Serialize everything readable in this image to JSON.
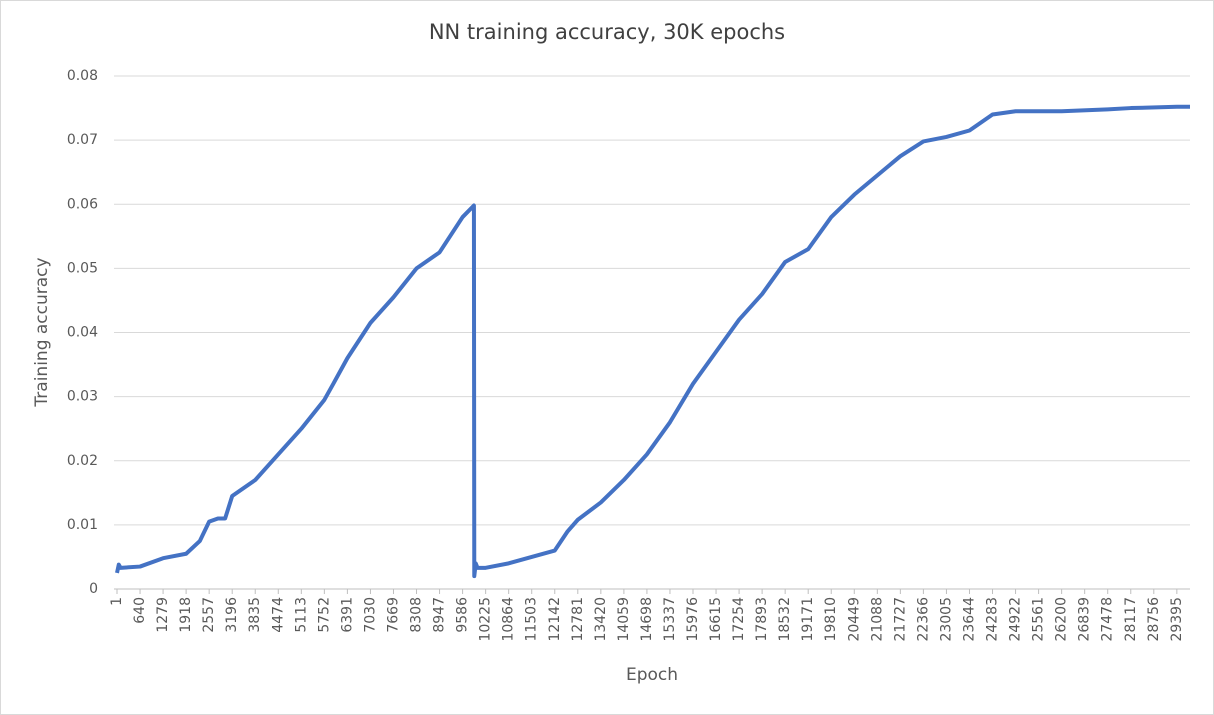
{
  "chart_data": {
    "type": "line",
    "title": "NN training accuracy, 30K epochs",
    "x_label": "Epoch",
    "y_label": "Training accuracy",
    "x": [
      1,
      50,
      100,
      640,
      1279,
      1918,
      2300,
      2557,
      2800,
      3000,
      3196,
      3835,
      4474,
      5113,
      5752,
      6000,
      6391,
      7030,
      7669,
      8308,
      8947,
      9586,
      9900,
      9910,
      9950,
      10000,
      10225,
      10864,
      11503,
      12142,
      12500,
      12781,
      13420,
      14059,
      14698,
      15337,
      15976,
      16615,
      17254,
      17893,
      18532,
      19171,
      19810,
      20449,
      21088,
      21727,
      22366,
      23005,
      23644,
      24283,
      24922,
      26200,
      27478,
      28117,
      29395,
      29760
    ],
    "series": [
      {
        "name": "Training accuracy",
        "color": "#4472c4",
        "values": [
          0.0025,
          0.0038,
          0.0033,
          0.0035,
          0.0048,
          0.0055,
          0.0075,
          0.0105,
          0.011,
          0.011,
          0.0145,
          0.017,
          0.021,
          0.025,
          0.0295,
          0.032,
          0.036,
          0.0415,
          0.0455,
          0.05,
          0.0525,
          0.058,
          0.0598,
          0.002,
          0.004,
          0.0033,
          0.0033,
          0.004,
          0.005,
          0.006,
          0.009,
          0.0108,
          0.0135,
          0.017,
          0.021,
          0.026,
          0.032,
          0.037,
          0.042,
          0.046,
          0.051,
          0.053,
          0.058,
          0.0615,
          0.0645,
          0.0675,
          0.0698,
          0.0705,
          0.0715,
          0.074,
          0.0745,
          0.0745,
          0.0748,
          0.075,
          0.0752,
          0.0752
        ]
      }
    ],
    "xlim": [
      1,
      29760
    ],
    "xticks": [
      1,
      640,
      1279,
      1918,
      2557,
      3196,
      3835,
      4474,
      5113,
      5752,
      6391,
      7030,
      7669,
      8308,
      8947,
      9586,
      10225,
      10864,
      11503,
      12142,
      12781,
      13420,
      14059,
      14698,
      15337,
      15976,
      16615,
      17254,
      17893,
      18532,
      19171,
      19810,
      20449,
      21088,
      21727,
      22366,
      23005,
      23644,
      24283,
      24922,
      25561,
      26200,
      26839,
      27478,
      28117,
      28756,
      29395
    ],
    "ylim": [
      0,
      0.08
    ],
    "yticks": [
      0,
      0.01,
      0.02,
      0.03,
      0.04,
      0.05,
      0.06,
      0.07,
      0.08
    ],
    "grid": true
  }
}
